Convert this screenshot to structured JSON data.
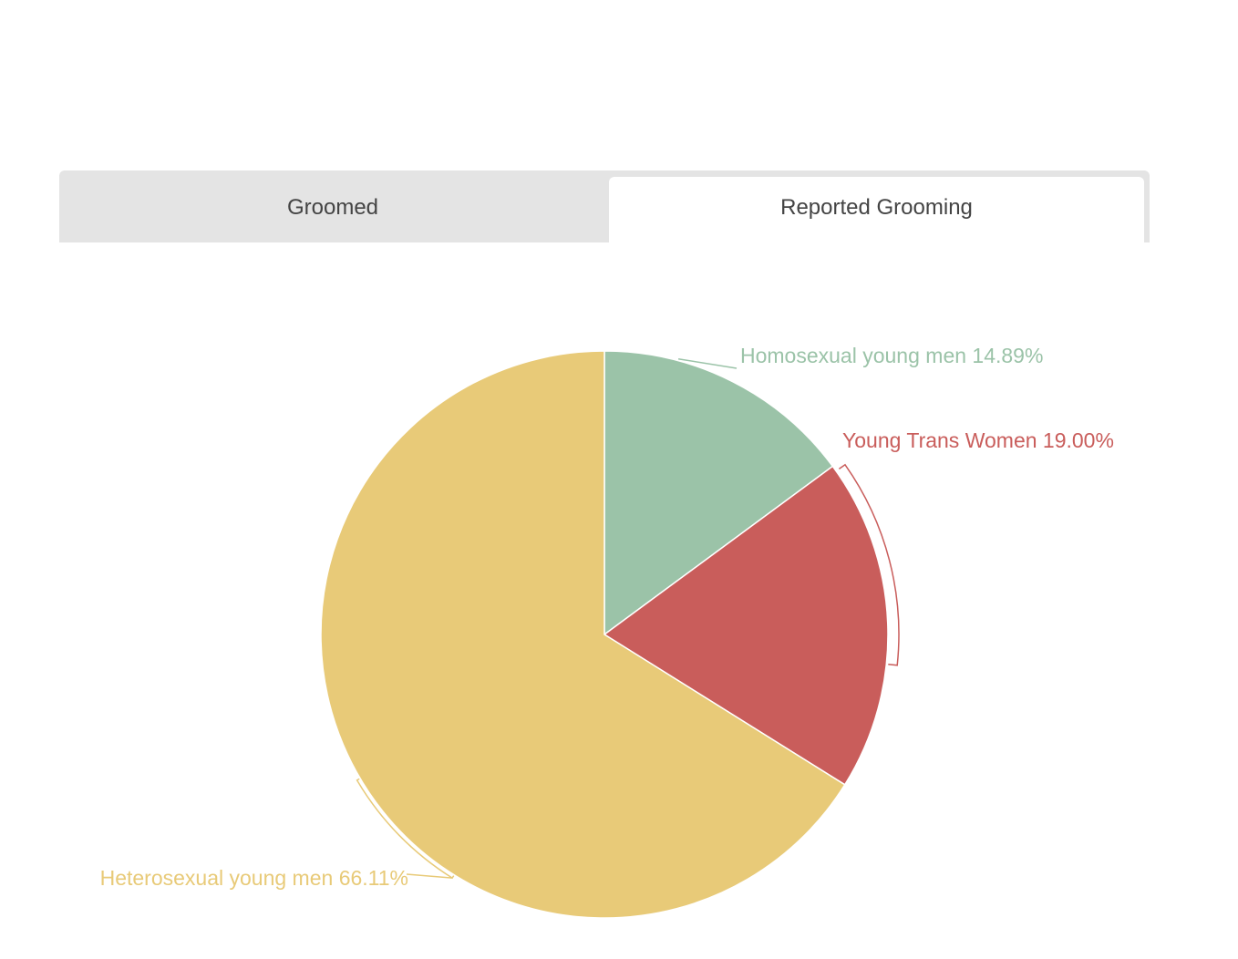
{
  "tabs": {
    "items": [
      {
        "label": "Groomed",
        "active": false
      },
      {
        "label": "Reported Grooming",
        "active": true
      }
    ]
  },
  "chart_data": {
    "type": "pie",
    "title": "",
    "slices": [
      {
        "label": "Homosexual young men",
        "value": 14.89,
        "display": "Homosexual young men 14.89%",
        "color": "#9bc3a8"
      },
      {
        "label": "Young Trans Women",
        "value": 19.0,
        "display": "Young Trans Women 19.00%",
        "color": "#c95d5b"
      },
      {
        "label": "Heterosexual young men",
        "value": 66.11,
        "display": "Heterosexual young men 66.11%",
        "color": "#e8ca78"
      }
    ],
    "start_angle": "12 o'clock",
    "direction": "clockwise",
    "legend": "none",
    "labels": "outside with leader lines"
  }
}
